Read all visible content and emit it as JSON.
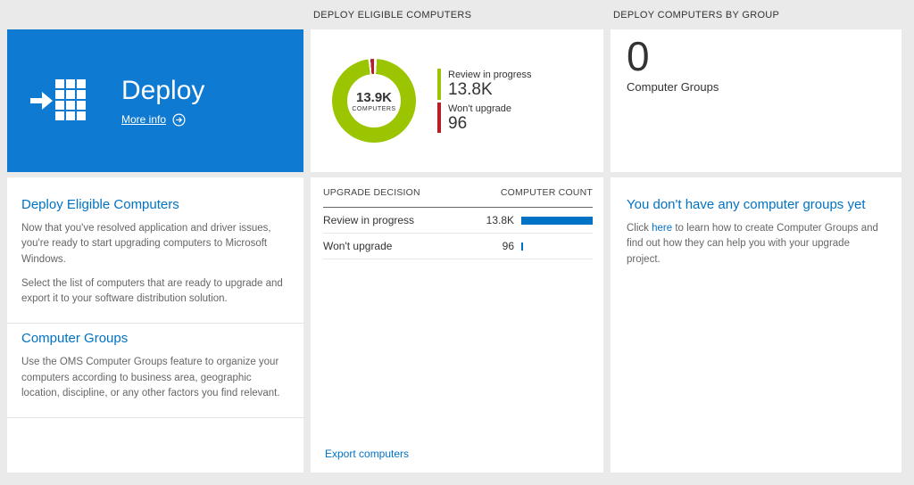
{
  "colors": {
    "page_bg": "#eaeaea",
    "card_bg": "#ffffff",
    "tile_blue": "#0f7ad1",
    "accent_blue": "#0072c6",
    "donut_green": "#9bc500",
    "bar_red": "#b91d25",
    "count_bar_blue": "#0072c6"
  },
  "left": {
    "tile": {
      "title": "Deploy",
      "more_info_label": "More info"
    },
    "sections": [
      {
        "heading": "Deploy Eligible Computers",
        "paragraphs": [
          "Now that you've resolved application and driver issues, you're ready to start upgrading computers to Microsoft Windows.",
          "Select the list of computers that are ready to upgrade and export it to your software distribution solution."
        ]
      },
      {
        "heading": "Computer Groups",
        "paragraphs": [
          "Use the OMS Computer Groups feature to organize your computers according to business area, geographic location, discipline, or any other factors you find relevant."
        ]
      }
    ]
  },
  "middle": {
    "header": "DEPLOY ELIGIBLE COMPUTERS",
    "donut": {
      "value": "13.9K",
      "label": "COMPUTERS"
    },
    "legend": [
      {
        "label": "Review in progress",
        "value": "13.8K",
        "color": "#9bc500"
      },
      {
        "label": "Won't upgrade",
        "value": "96",
        "color": "#b91d25"
      }
    ],
    "table": {
      "columns": [
        "UPGRADE DECISION",
        "COMPUTER COUNT"
      ],
      "rows": [
        {
          "label": "Review in progress",
          "value": "13.8K",
          "bar_pct": 100
        },
        {
          "label": "Won't upgrade",
          "value": "96",
          "bar_pct": 2
        }
      ]
    },
    "export_link": "Export computers"
  },
  "right": {
    "header": "DEPLOY COMPUTERS BY GROUP",
    "count": "0",
    "count_label": "Computer Groups",
    "empty": {
      "heading": "You don't have any computer groups yet",
      "text_before": "Click",
      "link_text": "here",
      "text_after": "to learn how to create Computer Groups and find out how they can help you with your upgrade project."
    }
  },
  "chart_data": [
    {
      "type": "pie",
      "title": "DEPLOY ELIGIBLE COMPUTERS",
      "center_value": "13.9K",
      "center_label": "COMPUTERS",
      "slices": [
        {
          "label": "Review in progress",
          "value": 13800,
          "display": "13.8K",
          "color": "#9bc500"
        },
        {
          "label": "Won't upgrade",
          "value": 96,
          "display": "96",
          "color": "#b91d25"
        }
      ],
      "legend_position": "right"
    },
    {
      "type": "table",
      "columns": [
        "UPGRADE DECISION",
        "COMPUTER COUNT"
      ],
      "rows": [
        [
          "Review in progress",
          "13.8K"
        ],
        [
          "Won't upgrade",
          "96"
        ]
      ]
    }
  ]
}
